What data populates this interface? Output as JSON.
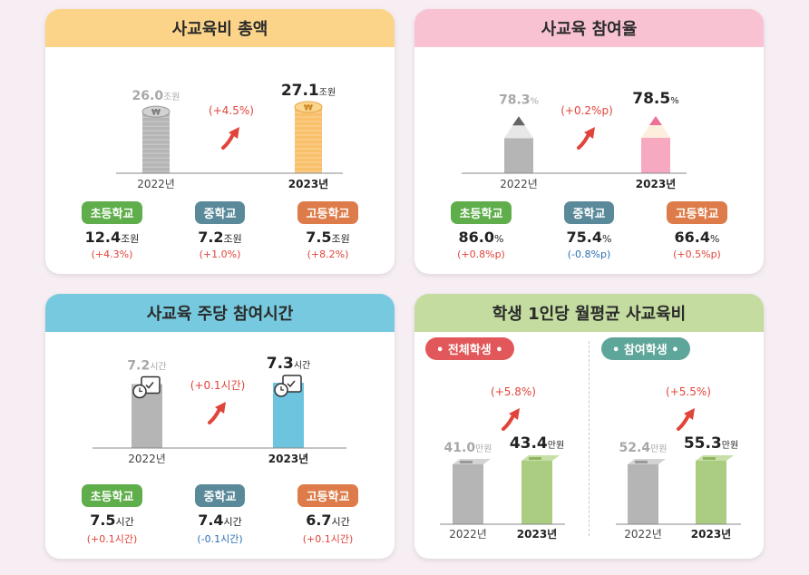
{
  "colors": {
    "gray": "#b5b5b5",
    "yellow": "#f9c06a",
    "pink": "#f7a9c2",
    "blue": "#6cc4df",
    "green": "#abcd82",
    "up": "#e0443a",
    "down": "#2b6fb3"
  },
  "chart_data": [
    {
      "type": "bar",
      "title": "사교육비 총액",
      "categories": [
        "2022년",
        "2023년"
      ],
      "values": [
        26.0,
        27.1
      ],
      "unit": "조원",
      "value_labels": [
        "26.0",
        "27.1"
      ],
      "change": "(+4.5%)",
      "breakdown": [
        {
          "label": "초등학교",
          "value": "12.4",
          "unit": "조원",
          "change": "(+4.3%)",
          "direction": "up",
          "color": "green"
        },
        {
          "label": "중학교",
          "value": "7.2",
          "unit": "조원",
          "change": "(+1.0%)",
          "direction": "up",
          "color": "teal"
        },
        {
          "label": "고등학교",
          "value": "7.5",
          "unit": "조원",
          "change": "(+8.2%)",
          "direction": "up",
          "color": "orange"
        }
      ]
    },
    {
      "type": "bar",
      "title": "사교육 참여율",
      "categories": [
        "2022년",
        "2023년"
      ],
      "values": [
        78.3,
        78.5
      ],
      "unit": "%",
      "value_labels": [
        "78.3",
        "78.5"
      ],
      "change": "(+0.2%p)",
      "breakdown": [
        {
          "label": "초등학교",
          "value": "86.0",
          "unit": "%",
          "change": "(+0.8%p)",
          "direction": "up",
          "color": "green"
        },
        {
          "label": "중학교",
          "value": "75.4",
          "unit": "%",
          "change": "(-0.8%p)",
          "direction": "down",
          "color": "teal"
        },
        {
          "label": "고등학교",
          "value": "66.4",
          "unit": "%",
          "change": "(+0.5%p)",
          "direction": "up",
          "color": "orange"
        }
      ]
    },
    {
      "type": "bar",
      "title": "사교육 주당 참여시간",
      "categories": [
        "2022년",
        "2023년"
      ],
      "values": [
        7.2,
        7.3
      ],
      "unit": "시간",
      "value_labels": [
        "7.2",
        "7.3"
      ],
      "change": "(+0.1시간)",
      "breakdown": [
        {
          "label": "초등학교",
          "value": "7.5",
          "unit": "시간",
          "change": "(+0.1시간)",
          "direction": "up",
          "color": "green"
        },
        {
          "label": "중학교",
          "value": "7.4",
          "unit": "시간",
          "change": "(-0.1시간)",
          "direction": "down",
          "color": "teal"
        },
        {
          "label": "고등학교",
          "value": "6.7",
          "unit": "시간",
          "change": "(+0.1시간)",
          "direction": "up",
          "color": "orange"
        }
      ]
    },
    {
      "type": "bar",
      "title": "학생 1인당 월평균 사교육비",
      "groups": [
        {
          "tag": "전체학생",
          "categories": [
            "2022년",
            "2023년"
          ],
          "values": [
            41.0,
            43.4
          ],
          "unit": "만원",
          "value_labels": [
            "41.0",
            "43.4"
          ],
          "change": "(+5.8%)"
        },
        {
          "tag": "참여학생",
          "categories": [
            "2022년",
            "2023년"
          ],
          "values": [
            52.4,
            55.3
          ],
          "unit": "만원",
          "value_labels": [
            "52.4",
            "55.3"
          ],
          "change": "(+5.5%)"
        }
      ]
    }
  ]
}
